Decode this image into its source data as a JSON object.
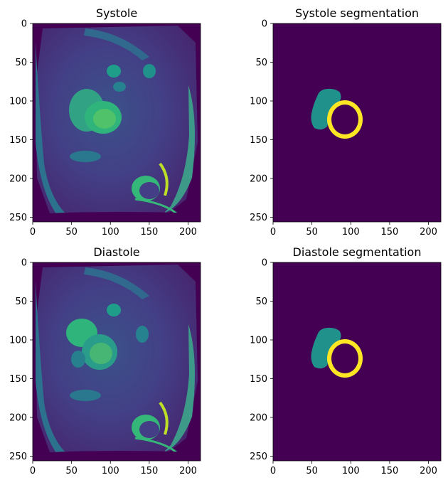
{
  "chart_data": [
    {
      "type": "heatmap",
      "title": "Systole",
      "image": "cardiac MRI short-axis slice, viridis colormap",
      "x_range": [
        0,
        216
      ],
      "y_range": [
        0,
        256
      ],
      "y_inverted": true,
      "x_ticks": [
        "0",
        "50",
        "100",
        "150",
        "200"
      ],
      "y_ticks": [
        "0",
        "50",
        "100",
        "150",
        "200",
        "250"
      ],
      "grid": false
    },
    {
      "type": "heatmap",
      "title": "Systole segmentation",
      "x_range": [
        0,
        216
      ],
      "y_range": [
        0,
        256
      ],
      "y_inverted": true,
      "x_ticks": [
        "0",
        "50",
        "100",
        "150",
        "200"
      ],
      "y_ticks": [
        "0",
        "50",
        "100",
        "150",
        "200",
        "250"
      ],
      "labels": [
        {
          "class": 0,
          "color": "#440154",
          "region": "background"
        },
        {
          "class": 1,
          "color": "#21918c",
          "region": "blob",
          "center": [
            70,
            117
          ]
        },
        {
          "class": 2,
          "color": "#fde725",
          "region": "ring",
          "center": [
            93,
            124
          ],
          "outer_radius": [
            21,
            24
          ],
          "inner_radius": [
            17,
            19
          ]
        }
      ],
      "grid": false
    },
    {
      "type": "heatmap",
      "title": "Diastole",
      "image": "cardiac MRI short-axis slice, viridis colormap",
      "x_range": [
        0,
        216
      ],
      "y_range": [
        0,
        256
      ],
      "y_inverted": true,
      "x_ticks": [
        "0",
        "50",
        "100",
        "150",
        "200"
      ],
      "y_ticks": [
        "0",
        "50",
        "100",
        "150",
        "200",
        "250"
      ],
      "grid": false
    },
    {
      "type": "heatmap",
      "title": "Diastole segmentation",
      "x_range": [
        0,
        216
      ],
      "y_range": [
        0,
        256
      ],
      "y_inverted": true,
      "x_ticks": [
        "0",
        "50",
        "100",
        "150",
        "200"
      ],
      "y_ticks": [
        "0",
        "50",
        "100",
        "150",
        "200",
        "250"
      ],
      "labels": [
        {
          "class": 0,
          "color": "#440154",
          "region": "background"
        },
        {
          "class": 1,
          "color": "#21918c",
          "region": "blob",
          "center": [
            70,
            117
          ]
        },
        {
          "class": 2,
          "color": "#fde725",
          "region": "ring",
          "center": [
            93,
            124
          ],
          "outer_radius": [
            21,
            24
          ],
          "inner_radius": [
            17,
            19
          ]
        }
      ],
      "grid": false
    }
  ],
  "colors": {
    "viridis_dark": "#440154",
    "viridis_blue": "#3b528b",
    "viridis_teal": "#21918c",
    "viridis_green": "#5ec962",
    "viridis_yellow": "#fde725"
  }
}
